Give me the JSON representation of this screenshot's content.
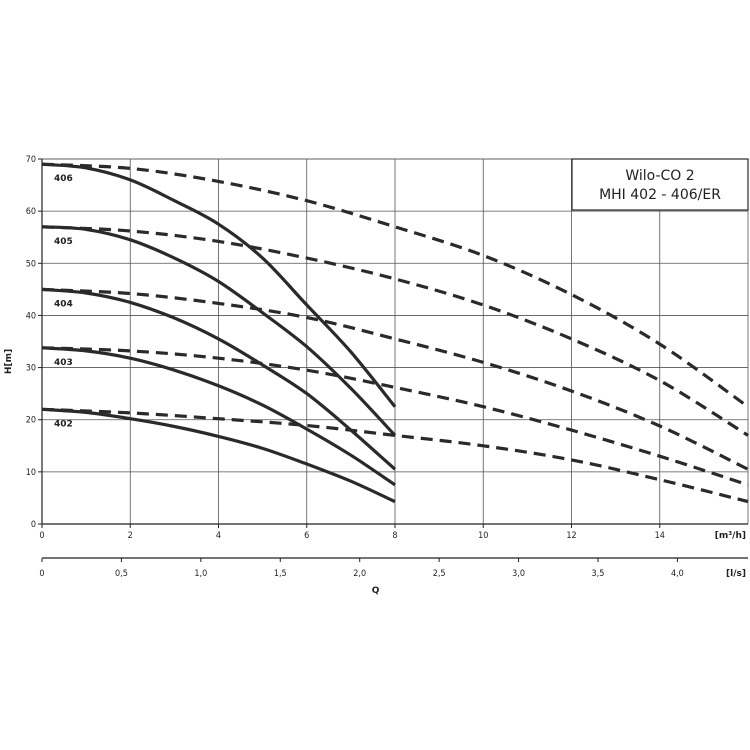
{
  "chart_data": {
    "type": "line",
    "title": [
      "Wilo-CO 2",
      "MHI 402 - 406/ER"
    ],
    "ylabel": "H[m]",
    "xlabel": "Q",
    "x_unit_top": "[m³/h]",
    "x_unit_bottom": "[l/s]",
    "xlim": [
      0,
      16
    ],
    "ylim": [
      0,
      70
    ],
    "y_ticks": [
      0,
      10,
      20,
      30,
      40,
      50,
      60,
      70
    ],
    "x_ticks_top": [
      {
        "v": 0,
        "label": "0"
      },
      {
        "v": 2,
        "label": "2"
      },
      {
        "v": 4,
        "label": "4"
      },
      {
        "v": 6,
        "label": "6"
      },
      {
        "v": 8,
        "label": "8"
      },
      {
        "v": 10,
        "label": "10"
      },
      {
        "v": 12,
        "label": "12"
      },
      {
        "v": 14,
        "label": "14"
      }
    ],
    "x_ticks_bottom": [
      {
        "v": 0,
        "label": "0"
      },
      {
        "v": 0.5,
        "label": "0,5"
      },
      {
        "v": 1.0,
        "label": "1,0"
      },
      {
        "v": 1.5,
        "label": "1,5"
      },
      {
        "v": 2.0,
        "label": "2,0"
      },
      {
        "v": 2.5,
        "label": "2,5"
      },
      {
        "v": 3.0,
        "label": "3,0"
      },
      {
        "v": 3.5,
        "label": "3,5"
      },
      {
        "v": 4.0,
        "label": "4,0"
      }
    ],
    "grid": true,
    "series": [
      {
        "name": "406",
        "style": "solid",
        "x": [
          0,
          1,
          2,
          3,
          4,
          5,
          6,
          7,
          8
        ],
        "y": [
          69,
          68.3,
          66,
          62,
          57.5,
          51,
          42,
          33,
          22.5
        ]
      },
      {
        "name": "406",
        "style": "dashed",
        "x": [
          0,
          2,
          4,
          6,
          8,
          10,
          12,
          14,
          16
        ],
        "y": [
          69,
          68.2,
          65.7,
          62,
          57,
          51.5,
          44,
          34.5,
          22.5
        ]
      },
      {
        "name": "405",
        "style": "solid",
        "x": [
          0,
          1,
          2,
          3,
          4,
          5,
          6,
          7,
          8
        ],
        "y": [
          57,
          56.5,
          54.5,
          51,
          46.5,
          40.5,
          34,
          26,
          17
        ]
      },
      {
        "name": "405",
        "style": "dashed",
        "x": [
          0,
          2,
          4,
          6,
          8,
          10,
          12,
          14,
          16
        ],
        "y": [
          57,
          56.2,
          54.2,
          51,
          47,
          42,
          35.5,
          27.5,
          17
        ]
      },
      {
        "name": "404",
        "style": "solid",
        "x": [
          0,
          1,
          2,
          3,
          4,
          5,
          6,
          7,
          8
        ],
        "y": [
          45,
          44.3,
          42.5,
          39.5,
          35.5,
          30.5,
          25,
          18,
          10.5
        ]
      },
      {
        "name": "404",
        "style": "dashed",
        "x": [
          0,
          2,
          4,
          6,
          8,
          10,
          12,
          14,
          16
        ],
        "y": [
          45,
          44.2,
          42.3,
          39.6,
          35.5,
          31,
          25.5,
          18.8,
          10.5
        ]
      },
      {
        "name": "403",
        "style": "solid",
        "x": [
          0,
          1,
          2,
          3,
          4,
          5,
          6,
          7,
          8
        ],
        "y": [
          33.8,
          33.2,
          31.8,
          29.5,
          26.5,
          22.8,
          18.2,
          13.2,
          7.5
        ]
      },
      {
        "name": "403",
        "style": "dashed",
        "x": [
          0,
          2,
          4,
          6,
          8,
          10,
          12,
          14,
          16
        ],
        "y": [
          33.8,
          33.2,
          31.8,
          29.5,
          26.2,
          22.5,
          18,
          13,
          7.5
        ]
      },
      {
        "name": "402",
        "style": "solid",
        "x": [
          0,
          1,
          2,
          3,
          4,
          5,
          6,
          7,
          8
        ],
        "y": [
          22,
          21.4,
          20.2,
          18.7,
          16.8,
          14.5,
          11.5,
          8.2,
          4.3
        ]
      },
      {
        "name": "402",
        "style": "dashed",
        "x": [
          0,
          2,
          4,
          6,
          8,
          10,
          12,
          14,
          16
        ],
        "y": [
          22,
          21.3,
          20.2,
          18.9,
          17,
          15,
          12.3,
          8.5,
          4.3
        ]
      }
    ]
  }
}
